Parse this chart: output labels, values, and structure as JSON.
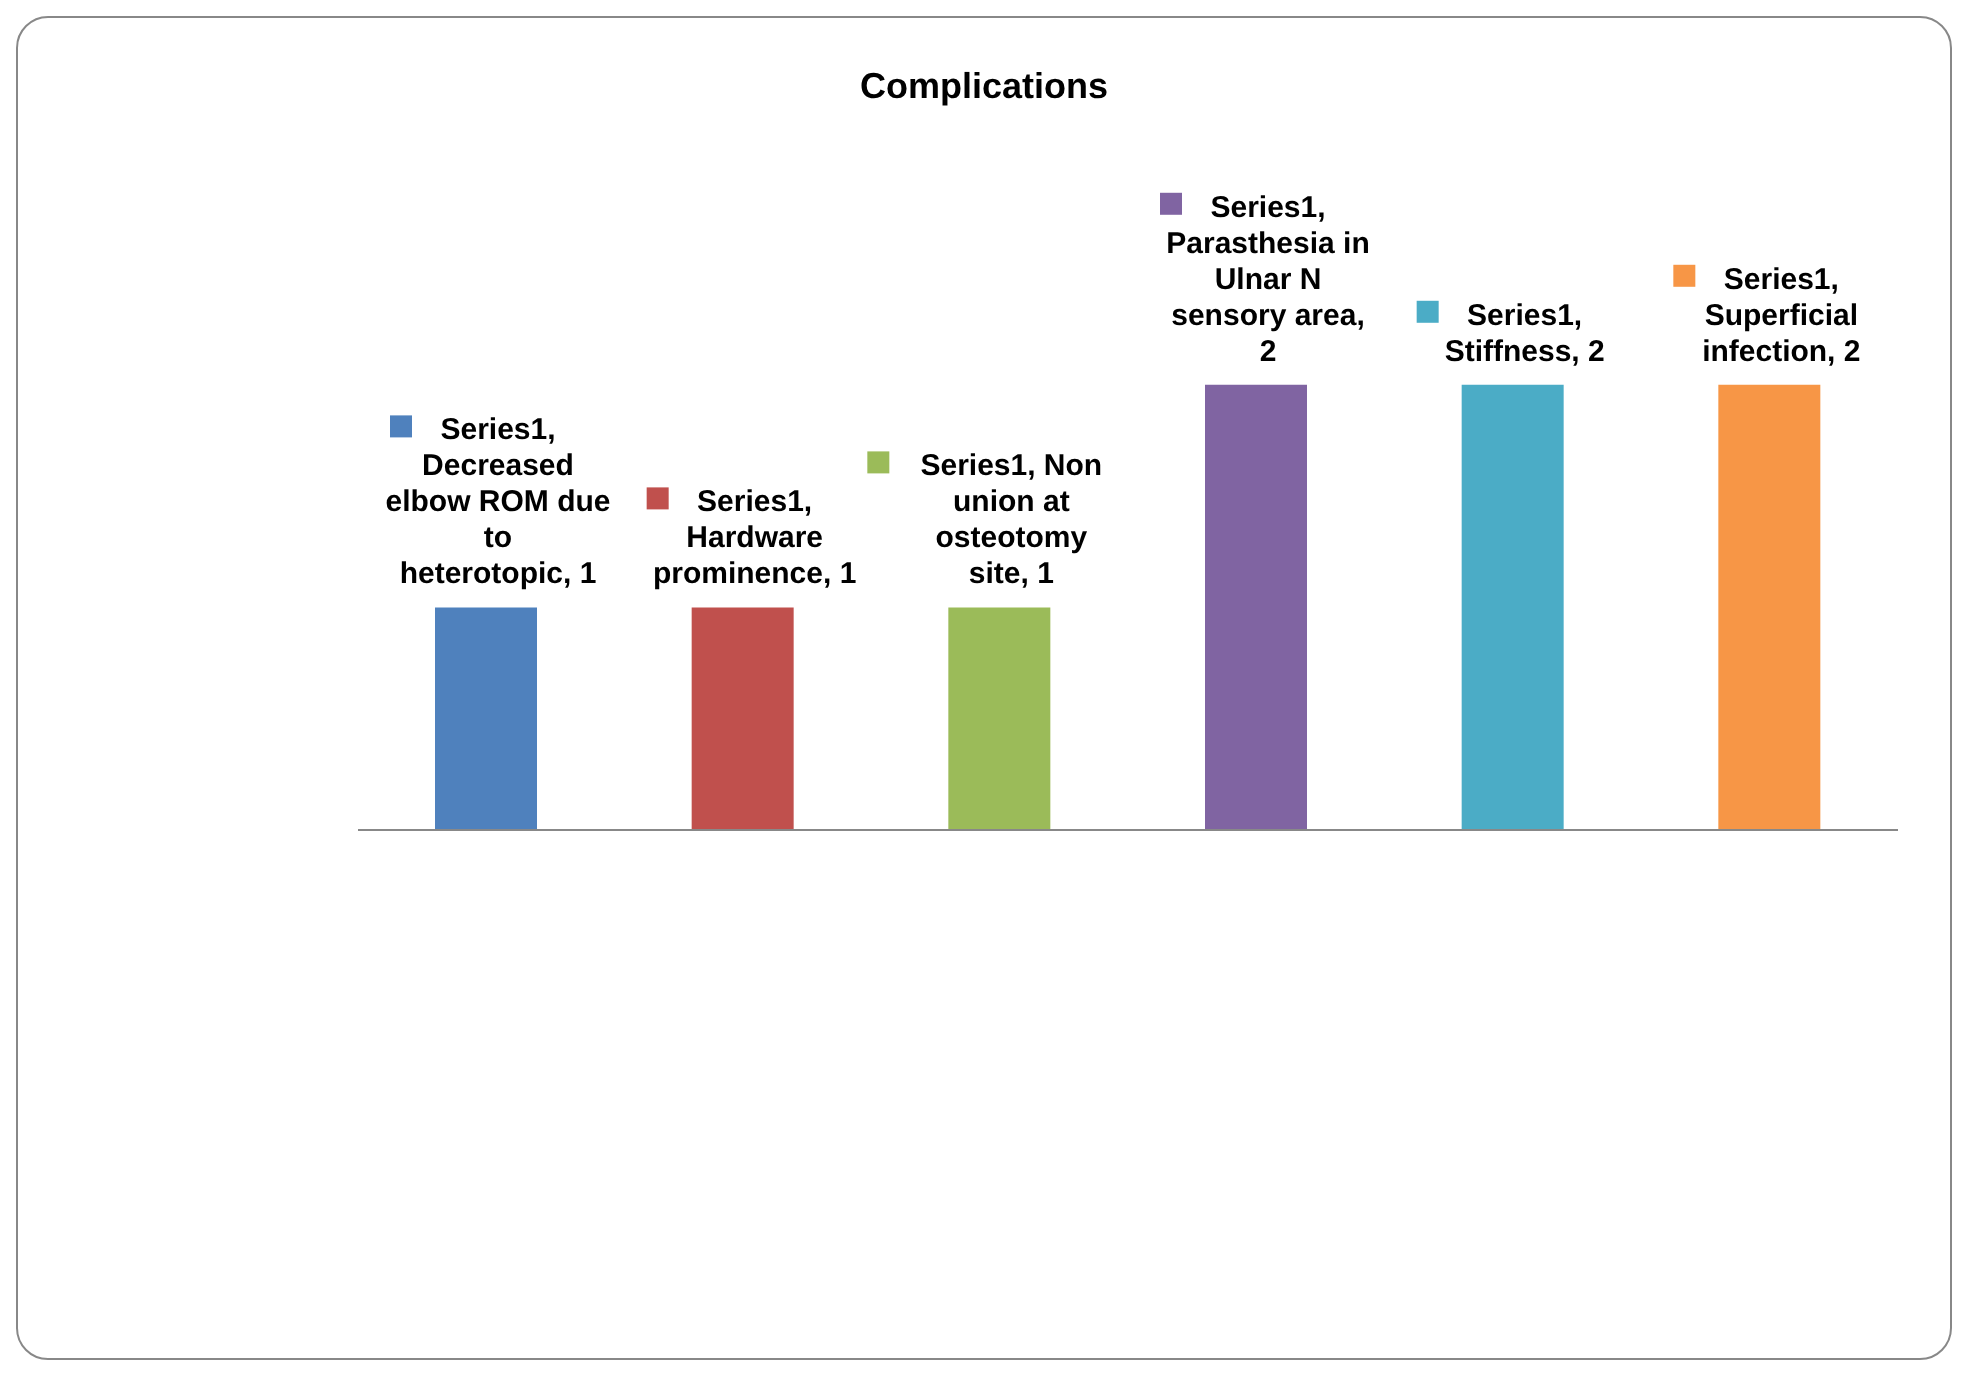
{
  "chart_data": {
    "type": "bar",
    "title": "Complications",
    "categories": [
      null,
      null,
      null,
      null,
      null,
      null
    ],
    "series": [
      {
        "values": [
          1,
          1,
          1,
          2,
          2,
          2
        ],
        "colors": [
          "#4f81bd",
          "#c0504d",
          "#9bbb59",
          "#8064a2",
          "#4bacc6",
          "#f79646"
        ],
        "value_labels": [
          "Series1, Decreased elbow ROM due to heterotopic, 1",
          "Series1, Hardware prominence, 1",
          "Series1, Non union at osteotomy site, 1",
          "Series1, Parasthesia in Ulnar N sensory area, 2",
          "Series1, Stiffness, 2",
          "Series1, Superficial infection, 2"
        ]
      }
    ]
  }
}
